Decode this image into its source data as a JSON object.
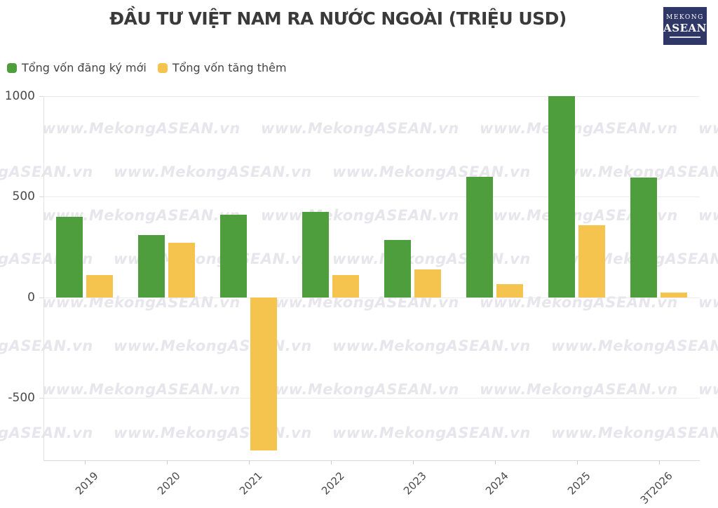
{
  "title": "ĐẦU TƯ VIỆT NAM RA NƯỚC NGOÀI (TRIỆU USD)",
  "logo": {
    "line1": "MEKONG",
    "line2": "ASEAN"
  },
  "watermark": {
    "text": "www.MekongASEAN.vn"
  },
  "legend": [
    {
      "label": "Tổng vốn đăng ký mới",
      "color": "#4f9e3e"
    },
    {
      "label": "Tổng vốn tăng thêm",
      "color": "#f5c44e"
    }
  ],
  "colors": {
    "green": "#4f9e3e",
    "yellow": "#f5c44e",
    "title_text": "#3a3a3a",
    "axis_text": "#4a4a4a",
    "gridline": "#ececec",
    "watermark": "#e6e6ec",
    "logo_bg": "#2e3765"
  },
  "chart_data": {
    "type": "bar",
    "title": "ĐẦU TƯ VIỆT NAM RA NƯỚC NGOÀI (TRIỆU USD)",
    "categories": [
      "2019",
      "2020",
      "2021",
      "2022",
      "2023",
      "2024",
      "2025",
      "3T2026"
    ],
    "series": [
      {
        "name": "Tổng vốn đăng ký mới",
        "color": "#4f9e3e",
        "values": [
          400,
          310,
          410,
          425,
          285,
          600,
          1000,
          595
        ]
      },
      {
        "name": "Tổng vốn tăng thêm",
        "color": "#f5c44e",
        "values": [
          110,
          270,
          -760,
          110,
          140,
          65,
          360,
          25
        ]
      }
    ],
    "xlabel": "",
    "ylabel": "",
    "yticks": [
      1000,
      500,
      0,
      -500
    ],
    "ylim": [
      -810,
      1000
    ],
    "grid": true,
    "legend_position": "top-left"
  }
}
